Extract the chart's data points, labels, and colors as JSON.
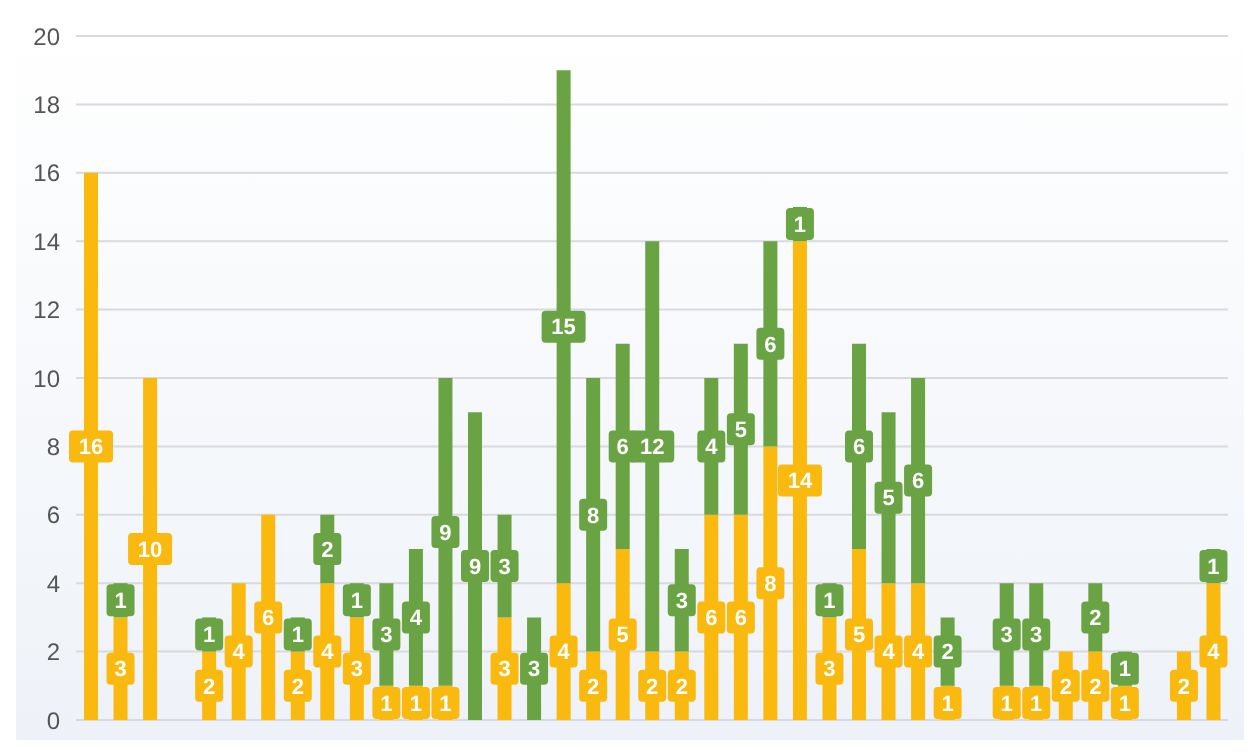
{
  "chart_data": {
    "type": "bar",
    "stacked": true,
    "data_labels": true,
    "grid": "y",
    "legend": false,
    "categories": [
      null,
      null,
      null,
      null,
      null,
      null,
      null,
      null,
      null,
      null,
      null,
      null,
      null,
      null,
      null,
      null,
      null,
      null,
      null,
      null,
      null,
      null,
      null,
      null,
      null,
      null,
      null,
      null,
      null,
      null,
      null,
      null,
      null,
      null,
      null,
      null,
      null,
      null,
      null
    ],
    "ylim": [
      0,
      20
    ],
    "yticks": [
      0,
      2,
      4,
      6,
      8,
      10,
      12,
      14,
      16,
      18,
      20
    ],
    "series": [
      {
        "color": "#f9b90e",
        "values": [
          16,
          3,
          10,
          null,
          2,
          4,
          6,
          2,
          4,
          3,
          1,
          1,
          1,
          null,
          3,
          null,
          4,
          2,
          5,
          2,
          2,
          6,
          6,
          8,
          14,
          3,
          5,
          4,
          4,
          1,
          null,
          1,
          1,
          2,
          2,
          1,
          null,
          2,
          4
        ]
      },
      {
        "color": "#6aa343",
        "values": [
          null,
          1,
          null,
          null,
          1,
          null,
          null,
          1,
          2,
          1,
          3,
          4,
          9,
          9,
          3,
          3,
          15,
          8,
          6,
          12,
          3,
          4,
          5,
          6,
          1,
          1,
          6,
          5,
          6,
          2,
          null,
          3,
          3,
          null,
          2,
          1,
          null,
          null,
          1
        ]
      }
    ]
  }
}
